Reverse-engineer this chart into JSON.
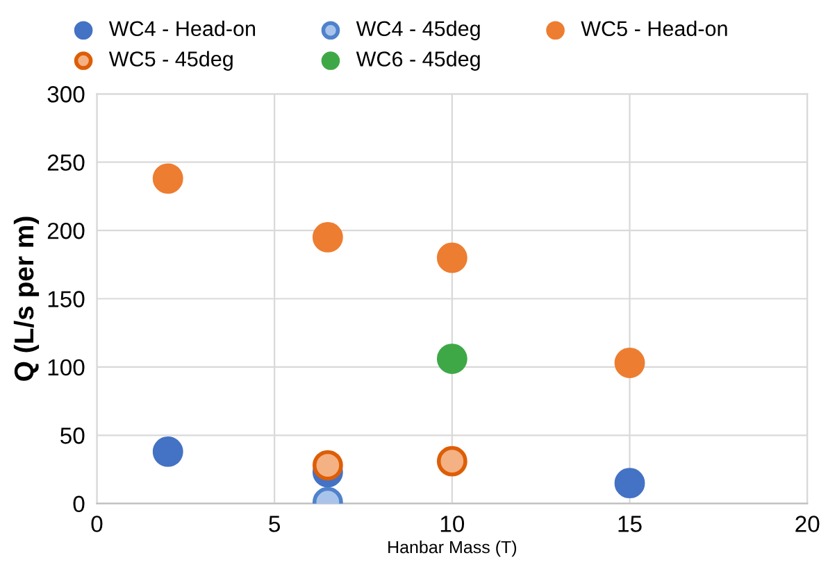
{
  "chart_data": {
    "type": "scatter",
    "xlabel": "Hanbar Mass (T)",
    "ylabel": "Q (L/s per m)",
    "xlim": [
      0,
      20
    ],
    "xticks": [
      0,
      5,
      10,
      15,
      20
    ],
    "ylim": [
      0,
      300
    ],
    "yticks": [
      0,
      50,
      100,
      150,
      200,
      250,
      300
    ],
    "grid": true,
    "legend": "top",
    "marker": "circle",
    "series": [
      {
        "name": "WC4 - Head-on",
        "color": "#4472c4",
        "x": [
          2,
          6.5,
          15
        ],
        "values": [
          38,
          23,
          15
        ]
      },
      {
        "name": "WC4 - 45deg",
        "color": "#a9c4eb",
        "x": [
          6.5
        ],
        "values": [
          1
        ]
      },
      {
        "name": "WC5 - Head-on",
        "color": "#ed7d31",
        "x": [
          2,
          6.5,
          10,
          15
        ],
        "values": [
          238,
          195,
          180,
          103
        ]
      },
      {
        "name": "WC5 - 45deg",
        "color": "#f4b183",
        "x": [
          6.5,
          10
        ],
        "values": [
          28,
          31
        ]
      },
      {
        "name": "WC6 - 45deg",
        "color": "#3ea847",
        "x": [
          10
        ],
        "values": [
          106
        ]
      }
    ]
  }
}
